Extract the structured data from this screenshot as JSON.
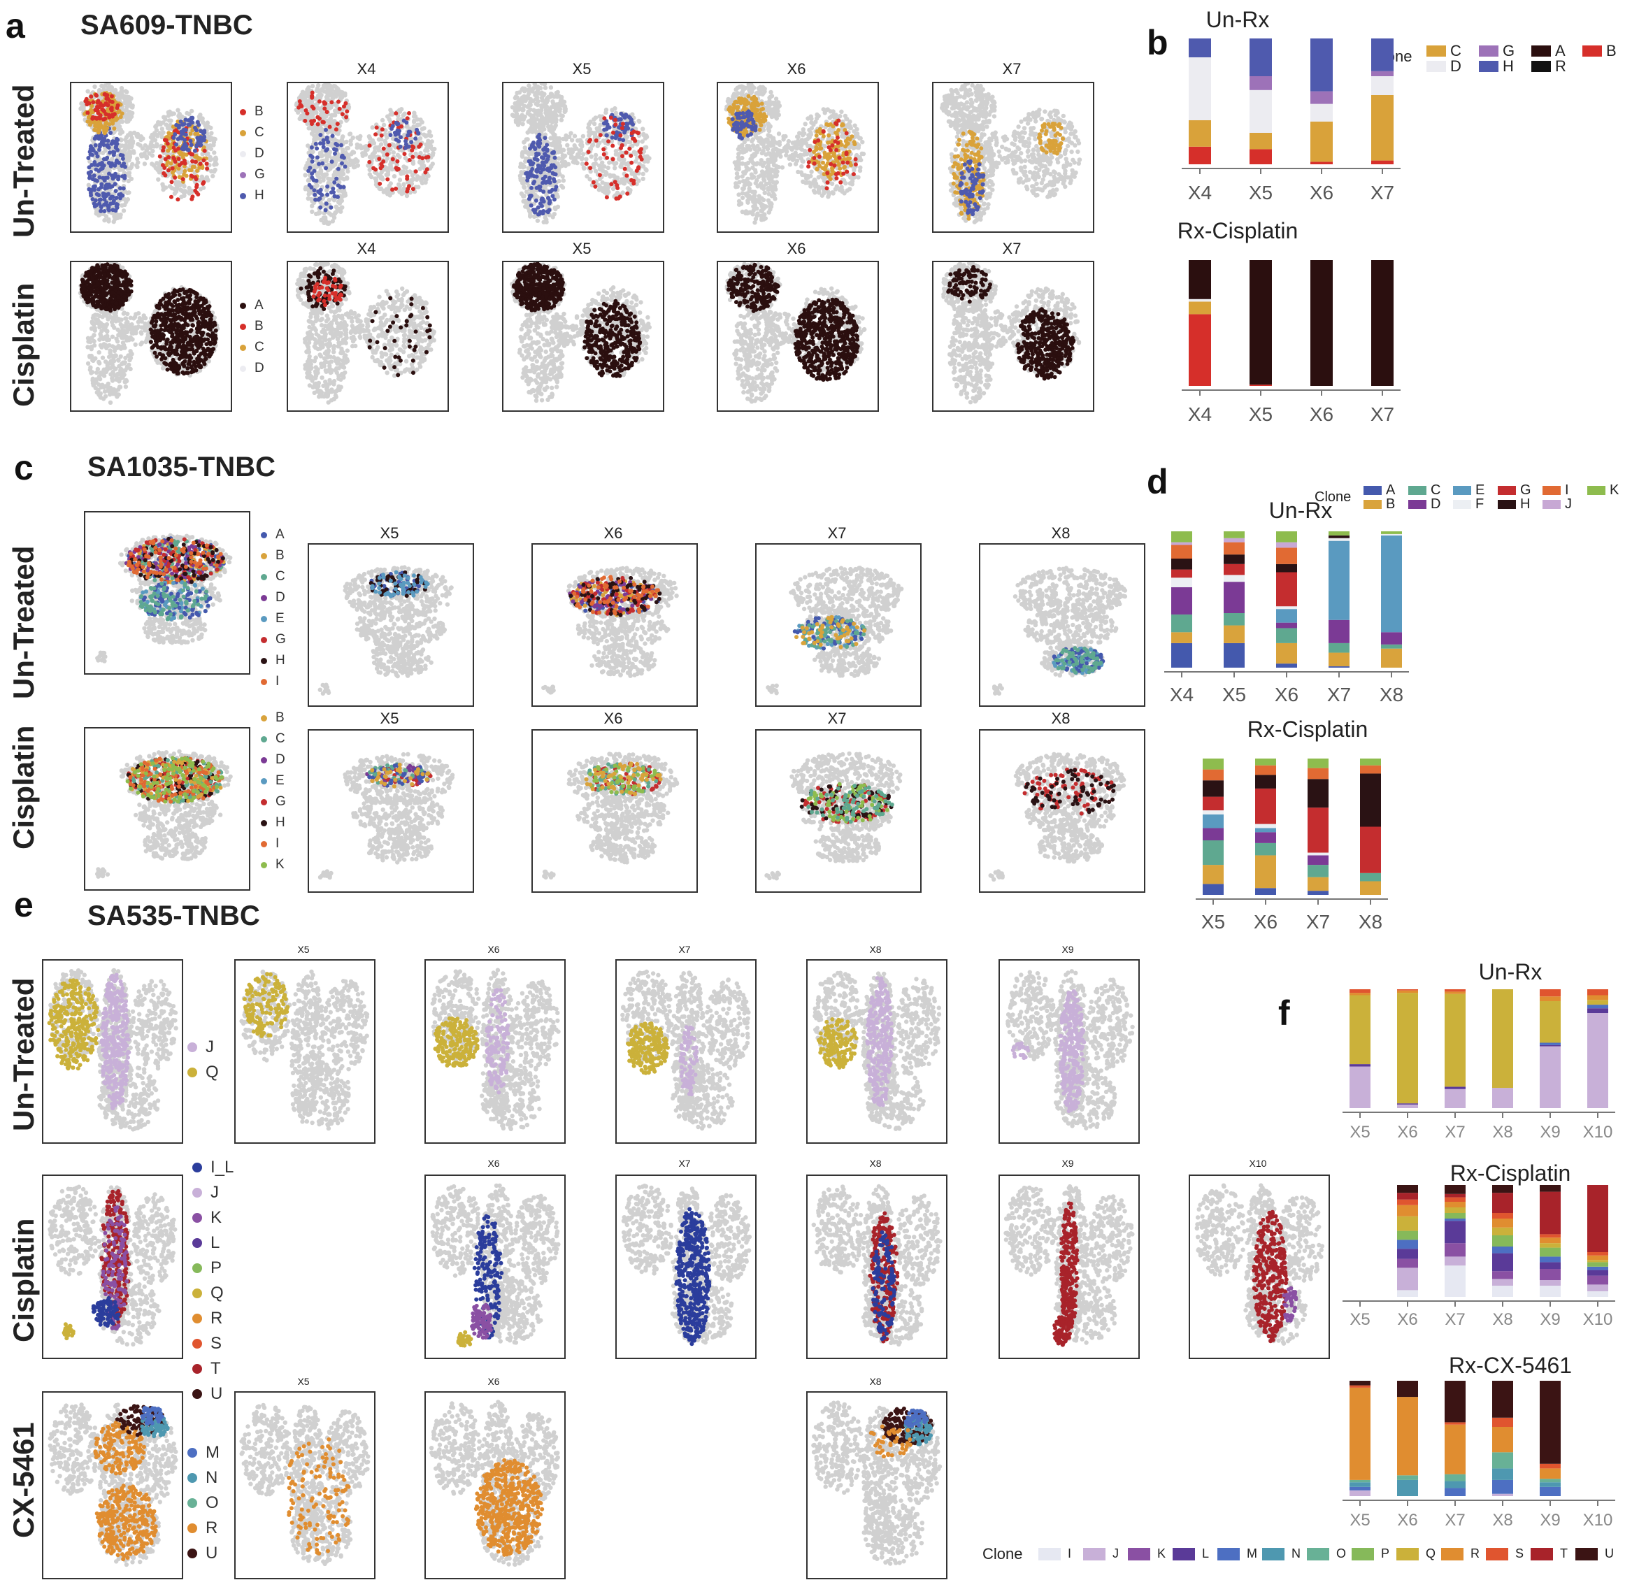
{
  "colors": {
    "A": "#2b0f0f",
    "B": "#d62f2a",
    "C": "#d9a23a",
    "D": "#ececf1",
    "G": "#9d72b8",
    "H": "#4f5aae",
    "R": "#111111",
    "A2": "#4459ad",
    "B2": "#d9a33c",
    "C2": "#5fa890",
    "D2": "#7b3a95",
    "E2": "#5a9ac0",
    "F2": "#eceff3",
    "G2": "#c42d2f",
    "H2": "#2a1214",
    "I2": "#e16a33",
    "J2": "#c7a8d4",
    "K2": "#8ebc4e",
    "I_L": "#2b3d9c",
    "J3": "#c8b0d8",
    "K3": "#8a50a3",
    "L3": "#5a3a98",
    "M3": "#4d6fc2",
    "N3": "#4e98b0",
    "O3": "#68b196",
    "P3": "#86b95a",
    "Q3": "#cbb13a",
    "R3": "#e08d30",
    "S3": "#e0552f",
    "T3": "#a8232a",
    "U3": "#3b1414",
    "grey": "#d0d0d0"
  },
  "panel_a": {
    "letter": "a",
    "sample": "SA609-TNBC",
    "rows": [
      "Un-Treated",
      "Cisplatin"
    ],
    "titles": [
      "X4",
      "X5",
      "X6",
      "X7"
    ],
    "legend_untreated": [
      "B",
      "C",
      "D",
      "G",
      "H"
    ],
    "legend_cisplatin": [
      "A",
      "B",
      "C",
      "D"
    ]
  },
  "panel_b": {
    "letter": "b",
    "clone_title": "Clone",
    "clones": [
      "C",
      "D",
      "G",
      "H",
      "A",
      "R",
      "B"
    ],
    "chart_data": [
      {
        "type": "bar",
        "stacked": true,
        "title": "Un-Rx",
        "categories": [
          "X4",
          "X5",
          "X6",
          "X7"
        ],
        "stack_order": [
          "B",
          "C",
          "D",
          "G",
          "H",
          "A",
          "R"
        ],
        "series": [
          {
            "name": "B",
            "values": [
              0.14,
              0.12,
              0.02,
              0.03
            ]
          },
          {
            "name": "C",
            "values": [
              0.21,
              0.13,
              0.32,
              0.52
            ]
          },
          {
            "name": "D",
            "values": [
              0.5,
              0.34,
              0.14,
              0.15
            ]
          },
          {
            "name": "G",
            "values": [
              0.0,
              0.11,
              0.1,
              0.04
            ]
          },
          {
            "name": "H",
            "values": [
              0.15,
              0.3,
              0.42,
              0.26
            ]
          }
        ]
      },
      {
        "type": "bar",
        "stacked": true,
        "title": "Rx-Cisplatin",
        "categories": [
          "X4",
          "X5",
          "X6",
          "X7"
        ],
        "series": [
          {
            "name": "B",
            "values": [
              0.57,
              0.01,
              0.0,
              0.0
            ]
          },
          {
            "name": "C",
            "values": [
              0.1,
              0.0,
              0.0,
              0.0
            ]
          },
          {
            "name": "D",
            "values": [
              0.02,
              0.0,
              0.0,
              0.0
            ]
          },
          {
            "name": "A",
            "values": [
              0.31,
              0.99,
              1.0,
              1.0
            ]
          }
        ]
      }
    ]
  },
  "panel_c": {
    "letter": "c",
    "sample": "SA1035-TNBC",
    "rows": [
      "Un-Treated",
      "Cisplatin"
    ],
    "titles": [
      "X5",
      "X6",
      "X7",
      "X8"
    ],
    "legend_untreated": [
      "A",
      "B",
      "C",
      "D",
      "E",
      "G",
      "H",
      "I"
    ],
    "legend_cisplatin": [
      "B",
      "C",
      "D",
      "E",
      "G",
      "H",
      "I",
      "K"
    ]
  },
  "panel_d": {
    "letter": "d",
    "clone_title": "Clone",
    "clones": [
      "A",
      "B",
      "C",
      "D",
      "E",
      "F",
      "G",
      "H",
      "I",
      "J",
      "K"
    ],
    "chart_data": [
      {
        "type": "bar",
        "stacked": true,
        "title": "Un-Rx",
        "categories": [
          "X4",
          "X5",
          "X6",
          "X7",
          "X8"
        ],
        "series": [
          {
            "name": "A",
            "values": [
              0.18,
              0.18,
              0.03,
              0.01,
              0.0
            ]
          },
          {
            "name": "B",
            "values": [
              0.08,
              0.13,
              0.15,
              0.1,
              0.14
            ]
          },
          {
            "name": "C",
            "values": [
              0.13,
              0.09,
              0.11,
              0.07,
              0.03
            ]
          },
          {
            "name": "D",
            "values": [
              0.2,
              0.23,
              0.04,
              0.17,
              0.09
            ]
          },
          {
            "name": "E",
            "values": [
              0.0,
              0.0,
              0.1,
              0.58,
              0.71
            ]
          },
          {
            "name": "F",
            "values": [
              0.07,
              0.05,
              0.02,
              0.02,
              0.01
            ]
          },
          {
            "name": "G",
            "values": [
              0.06,
              0.08,
              0.25,
              0.0,
              0.0
            ]
          },
          {
            "name": "H",
            "values": [
              0.08,
              0.07,
              0.06,
              0.02,
              0.0
            ]
          },
          {
            "name": "I",
            "values": [
              0.1,
              0.09,
              0.12,
              0.0,
              0.0
            ]
          },
          {
            "name": "J",
            "values": [
              0.02,
              0.03,
              0.04,
              0.0,
              0.0
            ]
          },
          {
            "name": "K",
            "values": [
              0.08,
              0.05,
              0.08,
              0.03,
              0.02
            ]
          }
        ]
      },
      {
        "type": "bar",
        "stacked": true,
        "title": "Rx-Cisplatin",
        "categories": [
          "X5",
          "X6",
          "X7",
          "X8"
        ],
        "series": [
          {
            "name": "A",
            "values": [
              0.08,
              0.05,
              0.03,
              0.0
            ]
          },
          {
            "name": "B",
            "values": [
              0.14,
              0.24,
              0.1,
              0.1
            ]
          },
          {
            "name": "C",
            "values": [
              0.18,
              0.09,
              0.09,
              0.06
            ]
          },
          {
            "name": "D",
            "values": [
              0.09,
              0.08,
              0.07,
              0.0
            ]
          },
          {
            "name": "E",
            "values": [
              0.1,
              0.03,
              0.0,
              0.0
            ]
          },
          {
            "name": "F",
            "values": [
              0.03,
              0.03,
              0.02,
              0.0
            ]
          },
          {
            "name": "G",
            "values": [
              0.1,
              0.26,
              0.33,
              0.34
            ]
          },
          {
            "name": "H",
            "values": [
              0.12,
              0.1,
              0.21,
              0.39
            ]
          },
          {
            "name": "I",
            "values": [
              0.08,
              0.07,
              0.08,
              0.06
            ]
          },
          {
            "name": "J",
            "values": [
              0.0,
              0.0,
              0.0,
              0.0
            ]
          },
          {
            "name": "K",
            "values": [
              0.08,
              0.05,
              0.07,
              0.05
            ]
          }
        ]
      }
    ]
  },
  "panel_e": {
    "letter": "e",
    "sample": "SA535-TNBC",
    "rows": [
      "Un-Treated",
      "Cisplatin",
      "CX-5461"
    ],
    "titles_untreated": [
      "X5",
      "X6",
      "X7",
      "X8",
      "X9"
    ],
    "titles_cisplatin": [
      "X6",
      "X7",
      "X8",
      "X9",
      "X10"
    ],
    "titles_cx": [
      "X5",
      "X6",
      "X8"
    ],
    "legend_untreated": [
      "J",
      "Q"
    ],
    "legend_cisplatin": [
      "I_L",
      "J",
      "K",
      "L",
      "P",
      "Q",
      "R",
      "S",
      "T",
      "U"
    ],
    "legend_cx": [
      "M",
      "N",
      "O",
      "R",
      "U"
    ]
  },
  "panel_f": {
    "letter": "f",
    "clone_title": "Clone",
    "clones": [
      "I",
      "J",
      "K",
      "L",
      "M",
      "N",
      "O",
      "P",
      "Q",
      "R",
      "S",
      "T",
      "U"
    ],
    "chart_data": [
      {
        "type": "bar",
        "stacked": true,
        "title": "Un-Rx",
        "categories": [
          "X5",
          "X6",
          "X7",
          "X8",
          "X9",
          "X10"
        ],
        "series": [
          {
            "name": "J",
            "values": [
              0.35,
              0.03,
              0.16,
              0.17,
              0.52,
              0.8
            ]
          },
          {
            "name": "L",
            "values": [
              0.02,
              0.01,
              0.02,
              0.0,
              0.01,
              0.04
            ]
          },
          {
            "name": "M",
            "values": [
              0.0,
              0.0,
              0.0,
              0.0,
              0.02,
              0.03
            ]
          },
          {
            "name": "Q",
            "values": [
              0.58,
              0.93,
              0.78,
              0.83,
              0.35,
              0.04
            ]
          },
          {
            "name": "R",
            "values": [
              0.02,
              0.02,
              0.02,
              0.0,
              0.04,
              0.04
            ]
          },
          {
            "name": "S",
            "values": [
              0.03,
              0.01,
              0.02,
              0.0,
              0.06,
              0.05
            ]
          }
        ]
      },
      {
        "type": "bar",
        "stacked": true,
        "title": "Rx-Cisplatin",
        "categories": [
          "X5",
          "X6",
          "X7",
          "X8",
          "X9",
          "X10"
        ],
        "series": [
          {
            "name": "I",
            "values": [
              0,
              0.06,
              0.28,
              0.1,
              0.1,
              0.05
            ]
          },
          {
            "name": "J",
            "values": [
              0,
              0.2,
              0.08,
              0.06,
              0.05,
              0.06
            ]
          },
          {
            "name": "K",
            "values": [
              0,
              0.08,
              0.12,
              0.07,
              0.1,
              0.08
            ]
          },
          {
            "name": "L",
            "values": [
              0,
              0.09,
              0.2,
              0.16,
              0.06,
              0.05
            ]
          },
          {
            "name": "M",
            "values": [
              0,
              0.08,
              0.02,
              0.06,
              0.05,
              0.03
            ]
          },
          {
            "name": "P",
            "values": [
              0,
              0.08,
              0.05,
              0.1,
              0.08,
              0.04
            ]
          },
          {
            "name": "Q",
            "values": [
              0,
              0.13,
              0.05,
              0.07,
              0.04,
              0.02
            ]
          },
          {
            "name": "R",
            "values": [
              0,
              0.1,
              0.05,
              0.08,
              0.05,
              0.04
            ]
          },
          {
            "name": "S",
            "values": [
              0,
              0.05,
              0.04,
              0.05,
              0.03,
              0.03
            ]
          },
          {
            "name": "T",
            "values": [
              0,
              0.06,
              0.03,
              0.18,
              0.38,
              0.6
            ]
          },
          {
            "name": "U",
            "values": [
              0,
              0.07,
              0.08,
              0.07,
              0.06,
              0.0
            ]
          }
        ]
      },
      {
        "type": "bar",
        "stacked": true,
        "title": "Rx-CX-5461",
        "categories": [
          "X5",
          "X6",
          "X7",
          "X8",
          "X9",
          "X10"
        ],
        "series": [
          {
            "name": "J",
            "values": [
              0.05,
              0.0,
              0.0,
              0.02,
              0.0,
              0
            ]
          },
          {
            "name": "M",
            "values": [
              0.03,
              0.0,
              0.07,
              0.12,
              0.08,
              0
            ]
          },
          {
            "name": "N",
            "values": [
              0.04,
              0.14,
              0.06,
              0.1,
              0.04,
              0
            ]
          },
          {
            "name": "O",
            "values": [
              0.02,
              0.04,
              0.06,
              0.14,
              0.03,
              0
            ]
          },
          {
            "name": "R",
            "values": [
              0.8,
              0.68,
              0.43,
              0.22,
              0.09,
              0
            ]
          },
          {
            "name": "S",
            "values": [
              0.02,
              0.0,
              0.02,
              0.08,
              0.04,
              0
            ]
          },
          {
            "name": "U",
            "values": [
              0.04,
              0.14,
              0.36,
              0.32,
              0.72,
              0
            ]
          }
        ]
      }
    ]
  }
}
